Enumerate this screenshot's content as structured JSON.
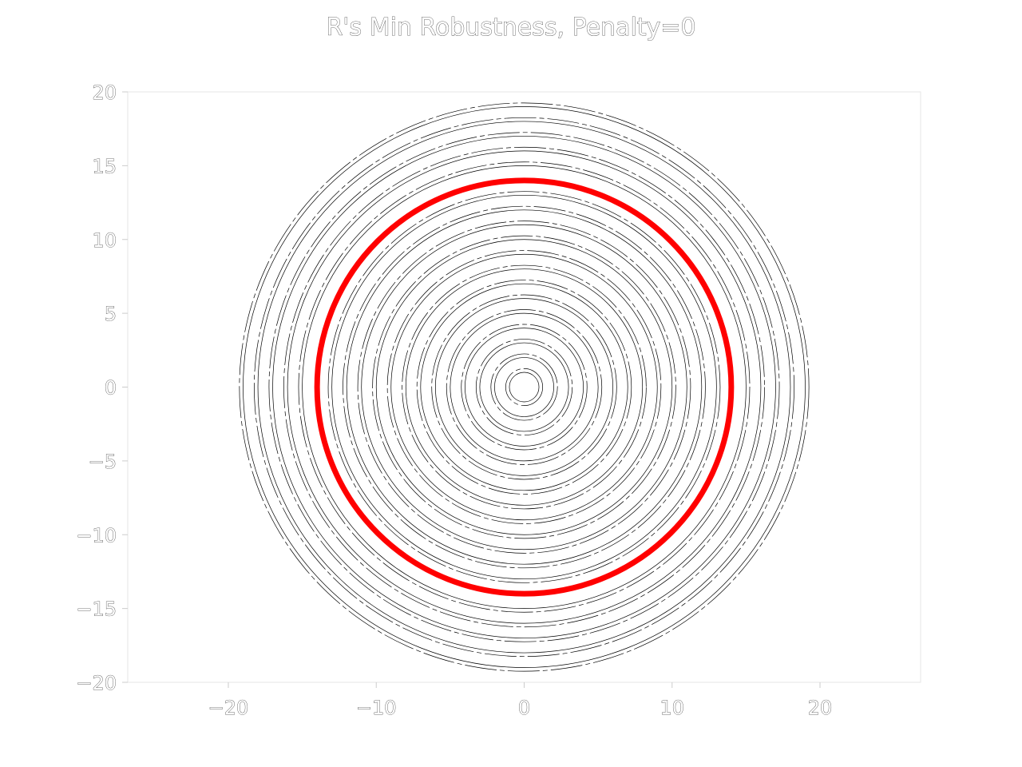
{
  "chart_data": {
    "type": "contour",
    "title": "R's Min Robustness, Penalty=0",
    "xlabel": "",
    "ylabel": "",
    "xlim": [
      -26.8,
      26.8
    ],
    "ylim": [
      -20,
      20
    ],
    "x_ticks": [
      -20,
      -10,
      0,
      10,
      20
    ],
    "y_ticks": [
      -20,
      -15,
      -10,
      -5,
      0,
      5,
      10,
      15,
      20
    ],
    "x_tick_labels": [
      "−20",
      "−10",
      "0",
      "10",
      "20"
    ],
    "y_tick_labels": [
      "−20",
      "−15",
      "−10",
      "−5",
      "0",
      "5",
      "10",
      "15",
      "20"
    ],
    "center": [
      0,
      0
    ],
    "contour_radii": [
      1,
      2,
      3,
      4,
      5,
      6,
      7,
      8,
      9,
      10,
      11,
      12,
      13,
      15,
      16,
      17,
      18,
      19
    ],
    "contour_color": "#000000",
    "highlight_radius": 14,
    "highlight_color": "#ff0000",
    "grid": false,
    "legend": "none"
  }
}
